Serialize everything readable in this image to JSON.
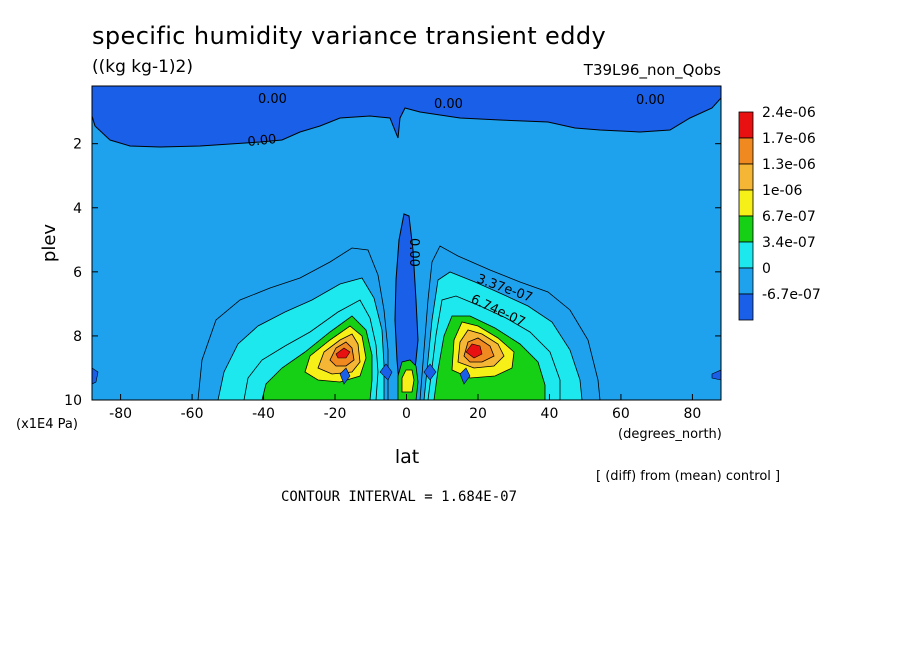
{
  "chart_data": {
    "type": "contour",
    "title": "specific humidity variance transient eddy",
    "units": "((kg kg-1)2)",
    "run_label": "T39L96_non_Qobs",
    "xlabel": "lat",
    "xunits": "(degrees_north)",
    "ylabel": "plev",
    "yunits": "(x1E4 Pa)",
    "xlim": [
      -88,
      88
    ],
    "ylim": [
      10,
      0.2
    ],
    "xticks": [
      "-80",
      "-60",
      "-40",
      "-20",
      "0",
      "20",
      "40",
      "60",
      "80"
    ],
    "xtick_values": [
      -80,
      -60,
      -40,
      -20,
      0,
      20,
      40,
      60,
      80
    ],
    "yticks": [
      "2",
      "4",
      "6",
      "8",
      "10"
    ],
    "ytick_values": [
      2,
      4,
      6,
      8,
      10
    ],
    "legend": {
      "labels": [
        "2.4e-06",
        "1.7e-06",
        "1.3e-06",
        "1e-06",
        "6.7e-07",
        "3.4e-07",
        "0",
        "-6.7e-07"
      ],
      "colors": [
        "#e81010",
        "#f08a20",
        "#f5b535",
        "#f7f018",
        "#16d016",
        "#1de8ee",
        "#1ea2ee",
        "#1a5fe8"
      ]
    },
    "contour_labels": [
      "0.00",
      "0.00",
      "0.00",
      "0.00",
      "0.00",
      "3.37e-07",
      "6.74e-07"
    ],
    "note": "[ (diff) from (mean) control ]",
    "contour_interval": "CONTOUR INTERVAL = 1.684E-07"
  }
}
